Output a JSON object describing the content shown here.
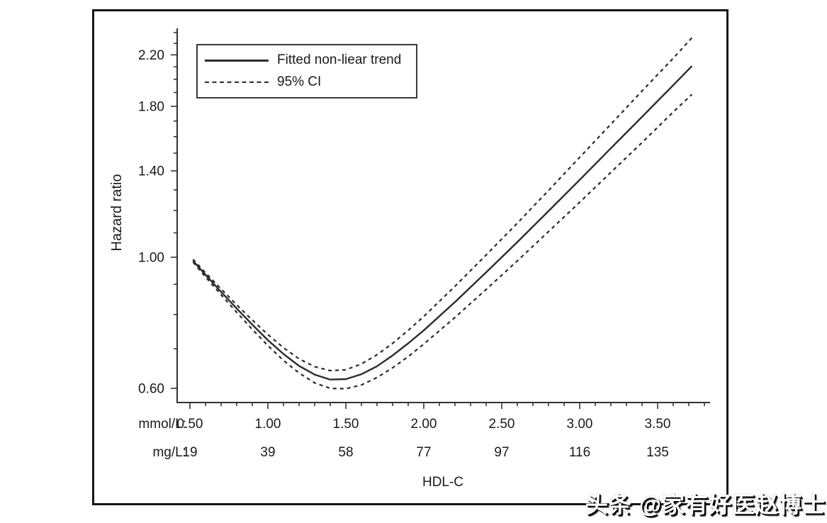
{
  "watermark": {
    "text": "头条 @家有好医赵博士"
  },
  "chart_data": {
    "type": "line",
    "title": "",
    "xlabel": "HDL-C",
    "ylabel": "Hazard ratio",
    "y_scale": "log",
    "xlim": [
      0.45,
      3.84
    ],
    "ylim": [
      0.567,
      2.42
    ],
    "grid": "off",
    "legend_position": "top-left",
    "legend": [
      {
        "label": "Fitted non-liear trend",
        "style": "solid"
      },
      {
        "label": "95% CI",
        "style": "dashed"
      }
    ],
    "x_unit_rows": [
      {
        "prefix": "mmol/L:",
        "labels": [
          "0.50",
          "1.00",
          "1.50",
          "2.00",
          "2.50",
          "3.00",
          "3.50"
        ]
      },
      {
        "prefix": "mg/L:",
        "labels": [
          "19",
          "39",
          "58",
          "77",
          "97",
          "116",
          "135"
        ]
      }
    ],
    "x_major_ticks": [
      0.5,
      1.0,
      1.5,
      2.0,
      2.5,
      3.0,
      3.5
    ],
    "x_minor_ticks": [
      0.6,
      0.7,
      0.8,
      0.9,
      1.1,
      1.2,
      1.3,
      1.4,
      1.6,
      1.7,
      1.8,
      1.9,
      2.1,
      2.2,
      2.3,
      2.4,
      2.6,
      2.7,
      2.8,
      2.9,
      3.1,
      3.2,
      3.3,
      3.4,
      3.6,
      3.7,
      3.8
    ],
    "y_major_ticks": [
      {
        "v": 0.6,
        "label": "0.60"
      },
      {
        "v": 1.0,
        "label": "1.00"
      },
      {
        "v": 1.4,
        "label": "1.40"
      },
      {
        "v": 1.8,
        "label": "1.80"
      },
      {
        "v": 2.2,
        "label": "2.20"
      }
    ],
    "y_minor_ticks": [
      0.7,
      0.8,
      0.9,
      1.1,
      1.2,
      1.3,
      1.5,
      1.6,
      1.7,
      1.9,
      2.0,
      2.1,
      2.3,
      2.4
    ],
    "series": [
      {
        "name": "Fitted non-liear trend",
        "style": "solid",
        "points": [
          [
            0.52,
            0.986
          ],
          [
            0.6,
            0.934
          ],
          [
            0.7,
            0.874
          ],
          [
            0.8,
            0.819
          ],
          [
            0.9,
            0.769
          ],
          [
            1.0,
            0.724
          ],
          [
            1.1,
            0.686
          ],
          [
            1.2,
            0.655
          ],
          [
            1.3,
            0.633
          ],
          [
            1.4,
            0.621
          ],
          [
            1.5,
            0.622
          ],
          [
            1.6,
            0.634
          ],
          [
            1.7,
            0.654
          ],
          [
            1.8,
            0.682
          ],
          [
            1.9,
            0.715
          ],
          [
            2.0,
            0.752
          ],
          [
            2.2,
            0.84
          ],
          [
            2.4,
            0.943
          ],
          [
            2.6,
            1.061
          ],
          [
            2.8,
            1.197
          ],
          [
            3.0,
            1.352
          ],
          [
            3.2,
            1.529
          ],
          [
            3.4,
            1.728
          ],
          [
            3.6,
            1.955
          ],
          [
            3.72,
            2.106
          ]
        ]
      },
      {
        "name": "95% CI upper",
        "style": "dashed",
        "points": [
          [
            0.52,
            0.992
          ],
          [
            0.6,
            0.941
          ],
          [
            0.7,
            0.884
          ],
          [
            0.8,
            0.831
          ],
          [
            0.9,
            0.783
          ],
          [
            1.0,
            0.74
          ],
          [
            1.1,
            0.703
          ],
          [
            1.2,
            0.673
          ],
          [
            1.3,
            0.653
          ],
          [
            1.4,
            0.643
          ],
          [
            1.5,
            0.645
          ],
          [
            1.6,
            0.66
          ],
          [
            1.7,
            0.684
          ],
          [
            1.8,
            0.715
          ],
          [
            1.9,
            0.752
          ],
          [
            2.0,
            0.794
          ],
          [
            2.2,
            0.893
          ],
          [
            2.4,
            1.009
          ],
          [
            2.6,
            1.142
          ],
          [
            2.8,
            1.297
          ],
          [
            3.0,
            1.476
          ],
          [
            3.2,
            1.679
          ],
          [
            3.4,
            1.911
          ],
          [
            3.6,
            2.171
          ],
          [
            3.72,
            2.352
          ]
        ]
      },
      {
        "name": "95% CI lower",
        "style": "dashed",
        "points": [
          [
            0.52,
            0.981
          ],
          [
            0.6,
            0.926
          ],
          [
            0.7,
            0.864
          ],
          [
            0.8,
            0.807
          ],
          [
            0.9,
            0.755
          ],
          [
            1.0,
            0.709
          ],
          [
            1.1,
            0.669
          ],
          [
            1.2,
            0.637
          ],
          [
            1.3,
            0.613
          ],
          [
            1.4,
            0.6
          ],
          [
            1.5,
            0.599
          ],
          [
            1.6,
            0.608
          ],
          [
            1.7,
            0.626
          ],
          [
            1.8,
            0.65
          ],
          [
            1.9,
            0.679
          ],
          [
            2.0,
            0.713
          ],
          [
            2.2,
            0.791
          ],
          [
            2.4,
            0.882
          ],
          [
            2.6,
            0.986
          ],
          [
            2.8,
            1.105
          ],
          [
            3.0,
            1.239
          ],
          [
            3.2,
            1.392
          ],
          [
            3.4,
            1.563
          ],
          [
            3.6,
            1.761
          ],
          [
            3.72,
            1.886
          ]
        ]
      }
    ]
  }
}
